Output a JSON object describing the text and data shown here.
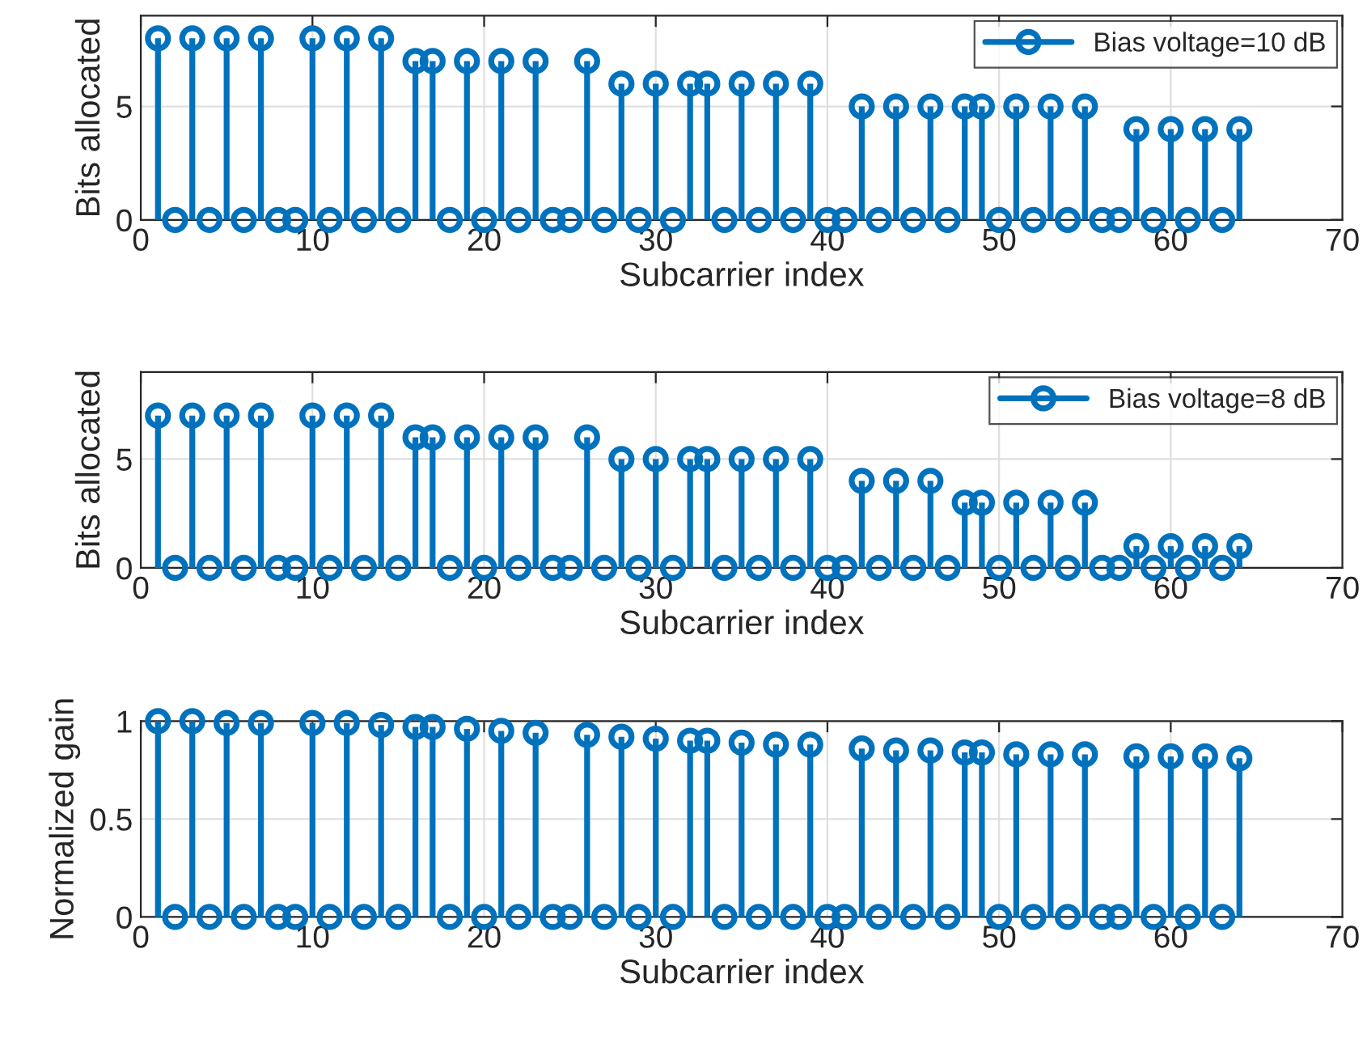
{
  "chart_data": [
    {
      "type": "lollipop",
      "xlabel": "Subcarrier index",
      "ylabel": "Bits allocated",
      "x": [
        1,
        2,
        3,
        4,
        5,
        6,
        7,
        8,
        9,
        10,
        11,
        12,
        13,
        14,
        15,
        16,
        17,
        18,
        19,
        20,
        21,
        22,
        23,
        24,
        25,
        26,
        27,
        28,
        29,
        30,
        31,
        32,
        33,
        34,
        35,
        36,
        37,
        38,
        39,
        40,
        41,
        42,
        43,
        44,
        45,
        46,
        47,
        48,
        49,
        50,
        51,
        52,
        53,
        54,
        55,
        56,
        57,
        58,
        59,
        60,
        61,
        62,
        63,
        64
      ],
      "series": [
        {
          "name": "Bias voltage=10 dB",
          "color": "#0072bd",
          "values": [
            8,
            0,
            8,
            0,
            8,
            0,
            8,
            0,
            0,
            8,
            0,
            8,
            0,
            8,
            0,
            7,
            7,
            0,
            7,
            0,
            7,
            0,
            7,
            0,
            0,
            7,
            0,
            6,
            0,
            6,
            0,
            6,
            6,
            0,
            6,
            0,
            6,
            0,
            6,
            0,
            0,
            5,
            0,
            5,
            0,
            5,
            0,
            5,
            5,
            0,
            5,
            0,
            5,
            0,
            5,
            0,
            0,
            4,
            0,
            4,
            0,
            4,
            0,
            4
          ]
        }
      ],
      "xlim": [
        0,
        70
      ],
      "xticks": [
        0,
        10,
        20,
        30,
        40,
        50,
        60,
        70
      ],
      "ylim": [
        0,
        9
      ],
      "yticks": [
        0,
        5
      ],
      "grid": true,
      "legend": "top right",
      "marker": "circle",
      "line_style": "solid"
    },
    {
      "type": "lollipop",
      "xlabel": "Subcarrier index",
      "ylabel": "Bits allocated",
      "x": [
        1,
        2,
        3,
        4,
        5,
        6,
        7,
        8,
        9,
        10,
        11,
        12,
        13,
        14,
        15,
        16,
        17,
        18,
        19,
        20,
        21,
        22,
        23,
        24,
        25,
        26,
        27,
        28,
        29,
        30,
        31,
        32,
        33,
        34,
        35,
        36,
        37,
        38,
        39,
        40,
        41,
        42,
        43,
        44,
        45,
        46,
        47,
        48,
        49,
        50,
        51,
        52,
        53,
        54,
        55,
        56,
        57,
        58,
        59,
        60,
        61,
        62,
        63,
        64
      ],
      "series": [
        {
          "name": "Bias voltage=8 dB",
          "color": "#0072bd",
          "values": [
            7,
            0,
            7,
            0,
            7,
            0,
            7,
            0,
            0,
            7,
            0,
            7,
            0,
            7,
            0,
            6,
            6,
            0,
            6,
            0,
            6,
            0,
            6,
            0,
            0,
            6,
            0,
            5,
            0,
            5,
            0,
            5,
            5,
            0,
            5,
            0,
            5,
            0,
            5,
            0,
            0,
            4,
            0,
            4,
            0,
            4,
            0,
            3,
            3,
            0,
            3,
            0,
            3,
            0,
            3,
            0,
            0,
            1,
            0,
            1,
            0,
            1,
            0,
            1
          ]
        }
      ],
      "xlim": [
        0,
        70
      ],
      "xticks": [
        0,
        10,
        20,
        30,
        40,
        50,
        60,
        70
      ],
      "ylim": [
        0,
        9
      ],
      "yticks": [
        0,
        5
      ],
      "grid": true,
      "legend": "top right",
      "marker": "circle",
      "line_style": "solid"
    },
    {
      "type": "lollipop",
      "xlabel": "Subcarrier index",
      "ylabel": "Normalized gain",
      "x": [
        1,
        2,
        3,
        4,
        5,
        6,
        7,
        8,
        9,
        10,
        11,
        12,
        13,
        14,
        15,
        16,
        17,
        18,
        19,
        20,
        21,
        22,
        23,
        24,
        25,
        26,
        27,
        28,
        29,
        30,
        31,
        32,
        33,
        34,
        35,
        36,
        37,
        38,
        39,
        40,
        41,
        42,
        43,
        44,
        45,
        46,
        47,
        48,
        49,
        50,
        51,
        52,
        53,
        54,
        55,
        56,
        57,
        58,
        59,
        60,
        61,
        62,
        63,
        64
      ],
      "series": [
        {
          "color": "#0072bd",
          "values": [
            1.0,
            0,
            1.0,
            0,
            0.99,
            0,
            0.99,
            0,
            0,
            0.99,
            0,
            0.99,
            0,
            0.98,
            0,
            0.97,
            0.97,
            0,
            0.96,
            0,
            0.95,
            0,
            0.94,
            0,
            0,
            0.93,
            0,
            0.92,
            0,
            0.91,
            0,
            0.9,
            0.9,
            0,
            0.89,
            0,
            0.88,
            0,
            0.88,
            0,
            0,
            0.86,
            0,
            0.85,
            0,
            0.85,
            0,
            0.84,
            0.84,
            0,
            0.83,
            0,
            0.83,
            0,
            0.83,
            0,
            0,
            0.82,
            0,
            0.82,
            0,
            0.82,
            0,
            0.81
          ]
        }
      ],
      "xlim": [
        0,
        70
      ],
      "xticks": [
        0,
        10,
        20,
        30,
        40,
        50,
        60,
        70
      ],
      "ylim": [
        0,
        1
      ],
      "yticks": [
        0,
        0.5,
        1
      ],
      "grid": true,
      "marker": "circle",
      "line_style": "solid"
    }
  ]
}
